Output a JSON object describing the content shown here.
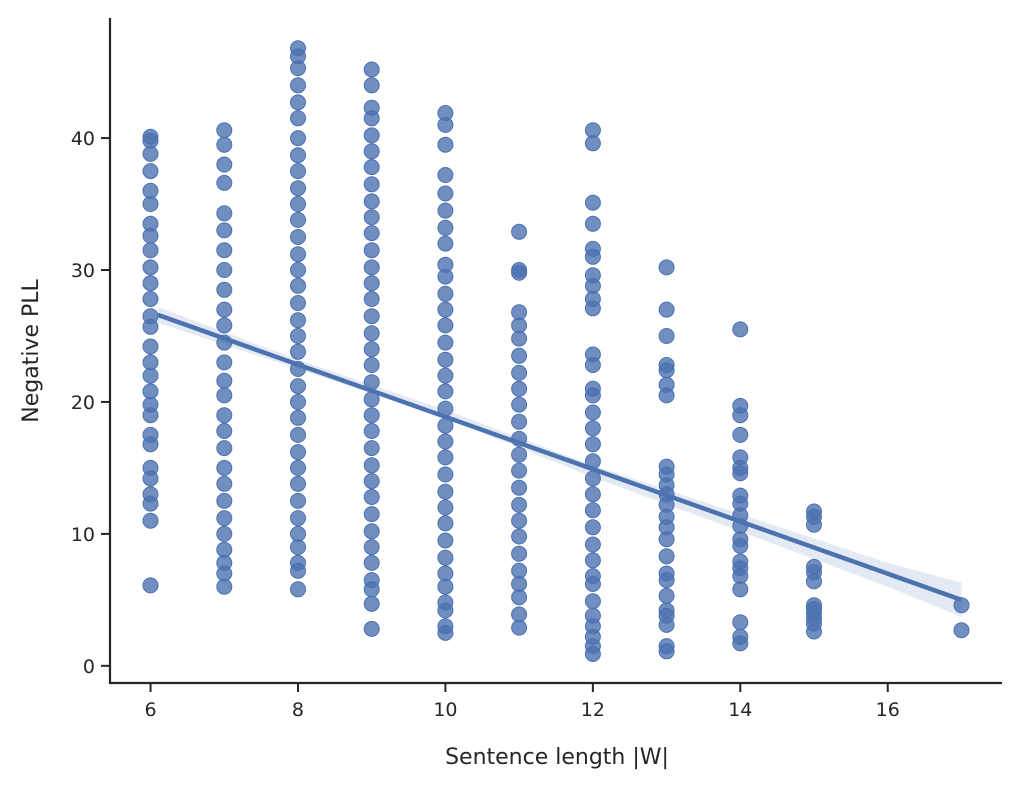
{
  "chart_data": {
    "type": "scatter",
    "xlabel": "Sentence length |W|",
    "ylabel": "Negative PLL",
    "xlim": [
      5.45,
      17.55
    ],
    "ylim": [
      -1.3,
      49.1
    ],
    "x_ticks": [
      6,
      8,
      10,
      12,
      14,
      16
    ],
    "y_ticks": [
      0,
      10,
      20,
      30,
      40
    ],
    "grid": false,
    "legend": "none",
    "point_color": "#4c72b0",
    "series": [
      {
        "points": [
          {
            "x": 6,
            "y": 40.1
          },
          {
            "x": 6,
            "y": 39.8
          },
          {
            "x": 6,
            "y": 38.8
          },
          {
            "x": 6,
            "y": 37.5
          },
          {
            "x": 6,
            "y": 36.0
          },
          {
            "x": 6,
            "y": 35.0
          },
          {
            "x": 6,
            "y": 33.5
          },
          {
            "x": 6,
            "y": 32.6
          },
          {
            "x": 6,
            "y": 31.5
          },
          {
            "x": 6,
            "y": 30.2
          },
          {
            "x": 6,
            "y": 29.0
          },
          {
            "x": 6,
            "y": 27.8
          },
          {
            "x": 6,
            "y": 26.5
          },
          {
            "x": 6,
            "y": 25.7
          },
          {
            "x": 6,
            "y": 24.2
          },
          {
            "x": 6,
            "y": 23.0
          },
          {
            "x": 6,
            "y": 22.0
          },
          {
            "x": 6,
            "y": 20.8
          },
          {
            "x": 6,
            "y": 19.8
          },
          {
            "x": 6,
            "y": 19.0
          },
          {
            "x": 6,
            "y": 17.5
          },
          {
            "x": 6,
            "y": 16.8
          },
          {
            "x": 6,
            "y": 15.0
          },
          {
            "x": 6,
            "y": 14.2
          },
          {
            "x": 6,
            "y": 13.0
          },
          {
            "x": 6,
            "y": 12.3
          },
          {
            "x": 6,
            "y": 11.0
          },
          {
            "x": 6,
            "y": 6.1
          },
          {
            "x": 7,
            "y": 40.6
          },
          {
            "x": 7,
            "y": 39.5
          },
          {
            "x": 7,
            "y": 38.0
          },
          {
            "x": 7,
            "y": 36.6
          },
          {
            "x": 7,
            "y": 34.3
          },
          {
            "x": 7,
            "y": 33.0
          },
          {
            "x": 7,
            "y": 31.5
          },
          {
            "x": 7,
            "y": 30.0
          },
          {
            "x": 7,
            "y": 28.5
          },
          {
            "x": 7,
            "y": 27.0
          },
          {
            "x": 7,
            "y": 25.8
          },
          {
            "x": 7,
            "y": 24.5
          },
          {
            "x": 7,
            "y": 23.0
          },
          {
            "x": 7,
            "y": 21.6
          },
          {
            "x": 7,
            "y": 20.5
          },
          {
            "x": 7,
            "y": 19.0
          },
          {
            "x": 7,
            "y": 17.8
          },
          {
            "x": 7,
            "y": 16.5
          },
          {
            "x": 7,
            "y": 15.0
          },
          {
            "x": 7,
            "y": 13.8
          },
          {
            "x": 7,
            "y": 12.5
          },
          {
            "x": 7,
            "y": 11.2
          },
          {
            "x": 7,
            "y": 10.0
          },
          {
            "x": 7,
            "y": 8.8
          },
          {
            "x": 7,
            "y": 7.8
          },
          {
            "x": 7,
            "y": 7.0
          },
          {
            "x": 7,
            "y": 6.0
          },
          {
            "x": 8,
            "y": 46.8
          },
          {
            "x": 8,
            "y": 46.2
          },
          {
            "x": 8,
            "y": 45.3
          },
          {
            "x": 8,
            "y": 44.0
          },
          {
            "x": 8,
            "y": 42.7
          },
          {
            "x": 8,
            "y": 41.5
          },
          {
            "x": 8,
            "y": 40.0
          },
          {
            "x": 8,
            "y": 38.7
          },
          {
            "x": 8,
            "y": 37.5
          },
          {
            "x": 8,
            "y": 36.2
          },
          {
            "x": 8,
            "y": 35.0
          },
          {
            "x": 8,
            "y": 33.8
          },
          {
            "x": 8,
            "y": 32.5
          },
          {
            "x": 8,
            "y": 31.2
          },
          {
            "x": 8,
            "y": 30.0
          },
          {
            "x": 8,
            "y": 28.8
          },
          {
            "x": 8,
            "y": 27.5
          },
          {
            "x": 8,
            "y": 26.2
          },
          {
            "x": 8,
            "y": 25.0
          },
          {
            "x": 8,
            "y": 23.8
          },
          {
            "x": 8,
            "y": 22.5
          },
          {
            "x": 8,
            "y": 21.2
          },
          {
            "x": 8,
            "y": 20.0
          },
          {
            "x": 8,
            "y": 18.8
          },
          {
            "x": 8,
            "y": 17.5
          },
          {
            "x": 8,
            "y": 16.2
          },
          {
            "x": 8,
            "y": 15.0
          },
          {
            "x": 8,
            "y": 13.8
          },
          {
            "x": 8,
            "y": 12.5
          },
          {
            "x": 8,
            "y": 11.2
          },
          {
            "x": 8,
            "y": 10.0
          },
          {
            "x": 8,
            "y": 9.0
          },
          {
            "x": 8,
            "y": 7.8
          },
          {
            "x": 8,
            "y": 7.2
          },
          {
            "x": 8,
            "y": 5.8
          },
          {
            "x": 9,
            "y": 45.2
          },
          {
            "x": 9,
            "y": 44.0
          },
          {
            "x": 9,
            "y": 42.3
          },
          {
            "x": 9,
            "y": 41.5
          },
          {
            "x": 9,
            "y": 40.2
          },
          {
            "x": 9,
            "y": 39.0
          },
          {
            "x": 9,
            "y": 37.8
          },
          {
            "x": 9,
            "y": 36.5
          },
          {
            "x": 9,
            "y": 35.2
          },
          {
            "x": 9,
            "y": 34.0
          },
          {
            "x": 9,
            "y": 32.8
          },
          {
            "x": 9,
            "y": 31.5
          },
          {
            "x": 9,
            "y": 30.2
          },
          {
            "x": 9,
            "y": 29.0
          },
          {
            "x": 9,
            "y": 27.8
          },
          {
            "x": 9,
            "y": 26.5
          },
          {
            "x": 9,
            "y": 25.2
          },
          {
            "x": 9,
            "y": 24.0
          },
          {
            "x": 9,
            "y": 22.8
          },
          {
            "x": 9,
            "y": 21.5
          },
          {
            "x": 9,
            "y": 20.2
          },
          {
            "x": 9,
            "y": 19.0
          },
          {
            "x": 9,
            "y": 17.8
          },
          {
            "x": 9,
            "y": 16.5
          },
          {
            "x": 9,
            "y": 15.2
          },
          {
            "x": 9,
            "y": 14.0
          },
          {
            "x": 9,
            "y": 12.8
          },
          {
            "x": 9,
            "y": 11.5
          },
          {
            "x": 9,
            "y": 10.2
          },
          {
            "x": 9,
            "y": 9.0
          },
          {
            "x": 9,
            "y": 7.8
          },
          {
            "x": 9,
            "y": 6.5
          },
          {
            "x": 9,
            "y": 5.8
          },
          {
            "x": 9,
            "y": 4.7
          },
          {
            "x": 9,
            "y": 2.8
          },
          {
            "x": 10,
            "y": 41.9
          },
          {
            "x": 10,
            "y": 41.0
          },
          {
            "x": 10,
            "y": 39.5
          },
          {
            "x": 10,
            "y": 37.2
          },
          {
            "x": 10,
            "y": 35.8
          },
          {
            "x": 10,
            "y": 34.5
          },
          {
            "x": 10,
            "y": 33.2
          },
          {
            "x": 10,
            "y": 32.0
          },
          {
            "x": 10,
            "y": 30.4
          },
          {
            "x": 10,
            "y": 29.5
          },
          {
            "x": 10,
            "y": 28.2
          },
          {
            "x": 10,
            "y": 27.0
          },
          {
            "x": 10,
            "y": 25.8
          },
          {
            "x": 10,
            "y": 24.5
          },
          {
            "x": 10,
            "y": 23.2
          },
          {
            "x": 10,
            "y": 22.0
          },
          {
            "x": 10,
            "y": 20.8
          },
          {
            "x": 10,
            "y": 19.5
          },
          {
            "x": 10,
            "y": 18.2
          },
          {
            "x": 10,
            "y": 17.0
          },
          {
            "x": 10,
            "y": 15.8
          },
          {
            "x": 10,
            "y": 14.5
          },
          {
            "x": 10,
            "y": 13.2
          },
          {
            "x": 10,
            "y": 12.0
          },
          {
            "x": 10,
            "y": 10.8
          },
          {
            "x": 10,
            "y": 9.5
          },
          {
            "x": 10,
            "y": 8.2
          },
          {
            "x": 10,
            "y": 7.0
          },
          {
            "x": 10,
            "y": 6.0
          },
          {
            "x": 10,
            "y": 4.8
          },
          {
            "x": 10,
            "y": 4.2
          },
          {
            "x": 10,
            "y": 3.0
          },
          {
            "x": 10,
            "y": 2.5
          },
          {
            "x": 11,
            "y": 32.9
          },
          {
            "x": 11,
            "y": 30.0
          },
          {
            "x": 11,
            "y": 29.8
          },
          {
            "x": 11,
            "y": 26.8
          },
          {
            "x": 11,
            "y": 25.8
          },
          {
            "x": 11,
            "y": 24.8
          },
          {
            "x": 11,
            "y": 23.5
          },
          {
            "x": 11,
            "y": 22.2
          },
          {
            "x": 11,
            "y": 21.0
          },
          {
            "x": 11,
            "y": 19.8
          },
          {
            "x": 11,
            "y": 18.5
          },
          {
            "x": 11,
            "y": 17.2
          },
          {
            "x": 11,
            "y": 16.0
          },
          {
            "x": 11,
            "y": 14.8
          },
          {
            "x": 11,
            "y": 13.5
          },
          {
            "x": 11,
            "y": 12.2
          },
          {
            "x": 11,
            "y": 11.0
          },
          {
            "x": 11,
            "y": 9.8
          },
          {
            "x": 11,
            "y": 8.5
          },
          {
            "x": 11,
            "y": 7.2
          },
          {
            "x": 11,
            "y": 6.2
          },
          {
            "x": 11,
            "y": 5.2
          },
          {
            "x": 11,
            "y": 3.9
          },
          {
            "x": 11,
            "y": 2.9
          },
          {
            "x": 12,
            "y": 40.6
          },
          {
            "x": 12,
            "y": 39.6
          },
          {
            "x": 12,
            "y": 35.1
          },
          {
            "x": 12,
            "y": 33.5
          },
          {
            "x": 12,
            "y": 31.6
          },
          {
            "x": 12,
            "y": 31.0
          },
          {
            "x": 12,
            "y": 29.6
          },
          {
            "x": 12,
            "y": 28.8
          },
          {
            "x": 12,
            "y": 27.8
          },
          {
            "x": 12,
            "y": 27.1
          },
          {
            "x": 12,
            "y": 23.6
          },
          {
            "x": 12,
            "y": 22.8
          },
          {
            "x": 12,
            "y": 21.0
          },
          {
            "x": 12,
            "y": 20.5
          },
          {
            "x": 12,
            "y": 19.2
          },
          {
            "x": 12,
            "y": 18.0
          },
          {
            "x": 12,
            "y": 16.8
          },
          {
            "x": 12,
            "y": 15.5
          },
          {
            "x": 12,
            "y": 14.2
          },
          {
            "x": 12,
            "y": 13.0
          },
          {
            "x": 12,
            "y": 11.8
          },
          {
            "x": 12,
            "y": 10.5
          },
          {
            "x": 12,
            "y": 9.2
          },
          {
            "x": 12,
            "y": 8.0
          },
          {
            "x": 12,
            "y": 6.8
          },
          {
            "x": 12,
            "y": 6.2
          },
          {
            "x": 12,
            "y": 4.9
          },
          {
            "x": 12,
            "y": 3.8
          },
          {
            "x": 12,
            "y": 3.0
          },
          {
            "x": 12,
            "y": 2.2
          },
          {
            "x": 12,
            "y": 1.5
          },
          {
            "x": 12,
            "y": 0.9
          },
          {
            "x": 13,
            "y": 30.2
          },
          {
            "x": 13,
            "y": 27.0
          },
          {
            "x": 13,
            "y": 25.0
          },
          {
            "x": 13,
            "y": 22.8
          },
          {
            "x": 13,
            "y": 22.4
          },
          {
            "x": 13,
            "y": 21.3
          },
          {
            "x": 13,
            "y": 20.5
          },
          {
            "x": 13,
            "y": 15.1
          },
          {
            "x": 13,
            "y": 14.5
          },
          {
            "x": 13,
            "y": 13.7
          },
          {
            "x": 13,
            "y": 13.0
          },
          {
            "x": 13,
            "y": 12.2
          },
          {
            "x": 13,
            "y": 11.3
          },
          {
            "x": 13,
            "y": 10.5
          },
          {
            "x": 13,
            "y": 9.6
          },
          {
            "x": 13,
            "y": 8.3
          },
          {
            "x": 13,
            "y": 7.0
          },
          {
            "x": 13,
            "y": 6.5
          },
          {
            "x": 13,
            "y": 5.3
          },
          {
            "x": 13,
            "y": 4.2
          },
          {
            "x": 13,
            "y": 3.8
          },
          {
            "x": 13,
            "y": 3.1
          },
          {
            "x": 13,
            "y": 1.5
          },
          {
            "x": 13,
            "y": 1.1
          },
          {
            "x": 14,
            "y": 25.5
          },
          {
            "x": 14,
            "y": 19.7
          },
          {
            "x": 14,
            "y": 19.0
          },
          {
            "x": 14,
            "y": 17.5
          },
          {
            "x": 14,
            "y": 15.8
          },
          {
            "x": 14,
            "y": 15.0
          },
          {
            "x": 14,
            "y": 14.6
          },
          {
            "x": 14,
            "y": 12.9
          },
          {
            "x": 14,
            "y": 12.3
          },
          {
            "x": 14,
            "y": 11.4
          },
          {
            "x": 14,
            "y": 10.6
          },
          {
            "x": 14,
            "y": 9.6
          },
          {
            "x": 14,
            "y": 9.1
          },
          {
            "x": 14,
            "y": 7.9
          },
          {
            "x": 14,
            "y": 7.4
          },
          {
            "x": 14,
            "y": 6.8
          },
          {
            "x": 14,
            "y": 5.8
          },
          {
            "x": 14,
            "y": 3.3
          },
          {
            "x": 14,
            "y": 2.2
          },
          {
            "x": 14,
            "y": 1.7
          },
          {
            "x": 15,
            "y": 11.7
          },
          {
            "x": 15,
            "y": 11.3
          },
          {
            "x": 15,
            "y": 10.7
          },
          {
            "x": 15,
            "y": 7.5
          },
          {
            "x": 15,
            "y": 7.1
          },
          {
            "x": 15,
            "y": 6.4
          },
          {
            "x": 15,
            "y": 4.6
          },
          {
            "x": 15,
            "y": 4.3
          },
          {
            "x": 15,
            "y": 4.0
          },
          {
            "x": 15,
            "y": 3.6
          },
          {
            "x": 15,
            "y": 3.2
          },
          {
            "x": 15,
            "y": 2.6
          },
          {
            "x": 17,
            "y": 4.6
          },
          {
            "x": 17,
            "y": 2.7
          }
        ]
      }
    ],
    "regression": {
      "x": [
        6.1,
        17.0
      ],
      "y": [
        26.6,
        5.0
      ],
      "ci_band": {
        "x": [
          6.1,
          8.0,
          10.0,
          12.0,
          14.0,
          16.0,
          17.0
        ],
        "lower": [
          26.0,
          22.5,
          18.8,
          14.3,
          10.2,
          6.0,
          3.7
        ],
        "upper": [
          27.2,
          23.2,
          19.4,
          15.2,
          11.5,
          7.8,
          6.3
        ]
      }
    }
  }
}
